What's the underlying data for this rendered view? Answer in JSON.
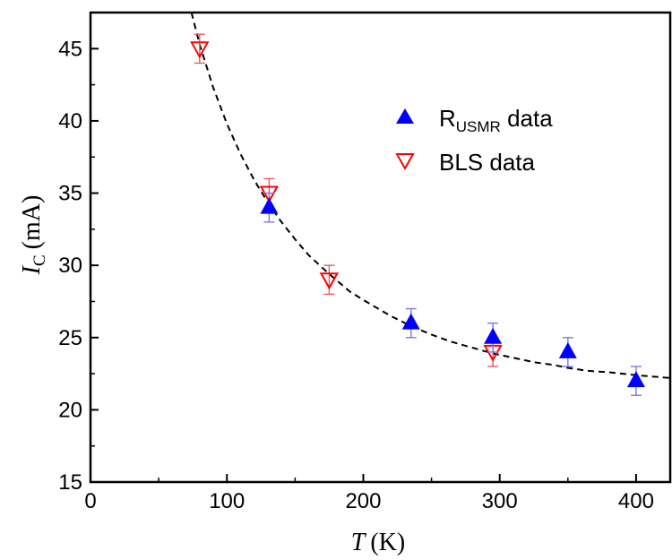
{
  "chart_data": {
    "type": "scatter",
    "xlabel_symbol": "T",
    "xlabel_unit": "(K)",
    "ylabel_symbol": "I",
    "ylabel_subscript": "C",
    "ylabel_unit": "(mA)",
    "xlim": [
      0,
      425
    ],
    "ylim": [
      15,
      47.5
    ],
    "x_ticks": [
      0,
      100,
      200,
      300,
      400
    ],
    "y_ticks": [
      15,
      20,
      25,
      30,
      35,
      40,
      45
    ],
    "legend_position": "top-right",
    "series": [
      {
        "name": "R",
        "name_subscript": "USMR",
        "name_suffix": " data",
        "marker": "filled-triangle-up",
        "color": "#0000ff",
        "errorbar_color": "#7878ee",
        "points": [
          {
            "x": 131,
            "y": 34,
            "err": 1
          },
          {
            "x": 235,
            "y": 26,
            "err": 1
          },
          {
            "x": 295,
            "y": 25,
            "err": 1
          },
          {
            "x": 350,
            "y": 24,
            "err": 1
          },
          {
            "x": 400,
            "y": 22,
            "err": 1
          }
        ]
      },
      {
        "name": "BLS data",
        "marker": "open-triangle-down",
        "color": "#ff0000",
        "errorbar_color": "#e06060",
        "points": [
          {
            "x": 80,
            "y": 45,
            "err": 1
          },
          {
            "x": 131,
            "y": 35,
            "err": 1
          },
          {
            "x": 175,
            "y": 29,
            "err": 1
          },
          {
            "x": 295,
            "y": 24,
            "err": 1
          }
        ]
      }
    ],
    "fit": {
      "style": "dashed",
      "color": "#000000",
      "points": [
        [
          74,
          47.5
        ],
        [
          80,
          45.3
        ],
        [
          90,
          42.3
        ],
        [
          100,
          39.8
        ],
        [
          110,
          37.7
        ],
        [
          120,
          35.9
        ],
        [
          131,
          34.2
        ],
        [
          140,
          33.0
        ],
        [
          150,
          31.8
        ],
        [
          160,
          30.7
        ],
        [
          175,
          29.4
        ],
        [
          190,
          28.2
        ],
        [
          200,
          27.6
        ],
        [
          220,
          26.5
        ],
        [
          235,
          25.8
        ],
        [
          250,
          25.2
        ],
        [
          265,
          24.7
        ],
        [
          280,
          24.3
        ],
        [
          295,
          23.9
        ],
        [
          310,
          23.6
        ],
        [
          325,
          23.3
        ],
        [
          340,
          23.1
        ],
        [
          350,
          22.9
        ],
        [
          365,
          22.7
        ],
        [
          380,
          22.6
        ],
        [
          400,
          22.4
        ],
        [
          425,
          22.2
        ]
      ]
    }
  }
}
